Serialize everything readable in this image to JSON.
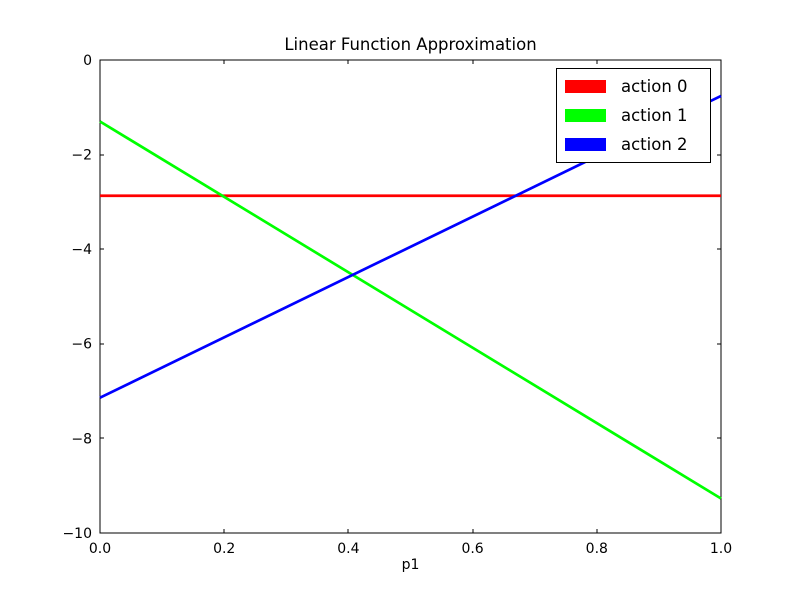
{
  "figure": {
    "background": "#ffffff",
    "axis_color": "#000000",
    "text_color": "#000000"
  },
  "chart_data": {
    "type": "line",
    "title": "Linear Function Approximation",
    "xlabel": "p1",
    "ylabel": "",
    "xlim": [
      0.0,
      1.0
    ],
    "ylim": [
      -10,
      0
    ],
    "xticks": [
      0.0,
      0.2,
      0.4,
      0.6,
      0.8,
      1.0
    ],
    "xtick_labels": [
      "0.0",
      "0.2",
      "0.4",
      "0.6",
      "0.8",
      "1.0"
    ],
    "yticks": [
      -10,
      -8,
      -6,
      -4,
      -2,
      0
    ],
    "ytick_labels": [
      "−10",
      "−8",
      "−6",
      "−4",
      "−2",
      "0"
    ],
    "grid": false,
    "legend": {
      "position": "upper right",
      "entries": [
        "action 0",
        "action 1",
        "action 2"
      ]
    },
    "series": [
      {
        "name": "action 0",
        "color": "#ff0000",
        "x": [
          0.0,
          1.0
        ],
        "y": [
          -2.87,
          -2.87
        ]
      },
      {
        "name": "action 1",
        "color": "#00ff00",
        "x": [
          0.0,
          1.0
        ],
        "y": [
          -1.3,
          -9.27
        ]
      },
      {
        "name": "action 2",
        "color": "#0000ff",
        "x": [
          0.0,
          1.0
        ],
        "y": [
          -7.14,
          -0.76
        ]
      }
    ]
  }
}
